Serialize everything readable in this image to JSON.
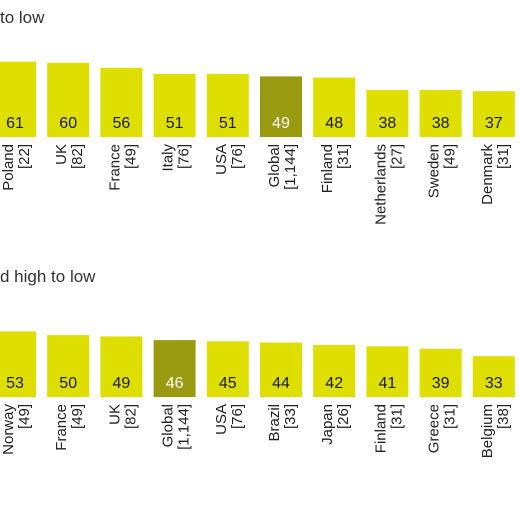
{
  "chart_data": [
    {
      "type": "bar",
      "title": "to low",
      "categories": [
        "Poland",
        "UK",
        "France",
        "Italy",
        "USA",
        "Global",
        "Finland",
        "Netherlands",
        "Sweden",
        "Denmark"
      ],
      "sample_sizes": [
        "[22]",
        "[82]",
        "[49]",
        "[76]",
        "[76]",
        "[1,144]",
        "[31]",
        "[27]",
        "[49]",
        "[31]"
      ],
      "values": [
        61,
        60,
        56,
        51,
        51,
        49,
        48,
        38,
        38,
        37
      ],
      "highlight": "Global",
      "colors": {
        "bar": "#dede00",
        "highlight": "#9a9a10",
        "label": "#1a1a1a",
        "highlight_label": "#ffffff"
      }
    },
    {
      "type": "bar",
      "title": "d high to low",
      "categories": [
        "Norway",
        "France",
        "UK",
        "Global",
        "USA",
        "Brazil",
        "Japan",
        "Finland",
        "Greece",
        "Belgium"
      ],
      "sample_sizes": [
        "[49]",
        "[49]",
        "[82]",
        "[1,144]",
        "[76]",
        "[33]",
        "[26]",
        "[31]",
        "[31]",
        "[38]"
      ],
      "values": [
        53,
        50,
        49,
        46,
        45,
        44,
        42,
        41,
        39,
        33
      ],
      "highlight": "Global",
      "colors": {
        "bar": "#dede00",
        "highlight": "#9a9a10",
        "label": "#1a1a1a",
        "highlight_label": "#ffffff"
      }
    }
  ]
}
